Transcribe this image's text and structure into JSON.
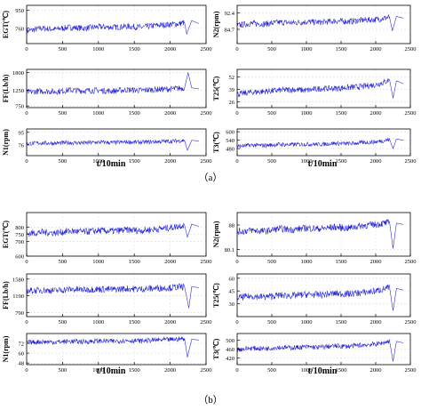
{
  "figure": {
    "xlabel": "t/10min",
    "captions": [
      "（a）",
      "（b）"
    ],
    "line_color": "#1f1fd6"
  },
  "chart_data": [
    {
      "type": "line",
      "group": "a",
      "ylabel": "EGT(℃)",
      "xlim": [
        0,
        2500
      ],
      "ylim": [
        600,
        1000
      ],
      "yticks": [
        760,
        950
      ],
      "xticks": [
        0,
        500,
        1000,
        1500,
        2000,
        2500
      ],
      "grid": true,
      "series": [
        {
          "x": [
            0,
            200,
            400,
            600,
            800,
            1000,
            1200,
            1400,
            1600,
            1800,
            2000,
            2100,
            2200,
            2230,
            2300,
            2400
          ],
          "y": [
            730,
            760,
            750,
            770,
            760,
            775,
            770,
            780,
            770,
            790,
            800,
            805,
            820,
            700,
            840,
            810
          ]
        }
      ]
    },
    {
      "type": "line",
      "group": "a",
      "ylabel": "N2(rpm)",
      "xlim": [
        0,
        2500
      ],
      "ylim": [
        78,
        96
      ],
      "yticks": [
        84.7,
        92.4
      ],
      "xticks": [
        0,
        500,
        1000,
        1500,
        2000,
        2500
      ],
      "grid": true,
      "series": [
        {
          "x": [
            0,
            200,
            400,
            600,
            800,
            1000,
            1200,
            1400,
            1600,
            1800,
            2000,
            2100,
            2200,
            2240,
            2300,
            2400
          ],
          "y": [
            86.5,
            87.5,
            87.2,
            88,
            87.8,
            88.2,
            88,
            88.6,
            88.4,
            89,
            89.3,
            89.8,
            90.5,
            84,
            90.8,
            90
          ]
        }
      ]
    },
    {
      "type": "line",
      "group": "a",
      "ylabel": "FF(Lb/h)",
      "xlim": [
        0,
        2500
      ],
      "ylim": [
        700,
        1900
      ],
      "yticks": [
        750,
        1250,
        1800
      ],
      "xticks": [
        0,
        500,
        1000,
        1500,
        2000,
        2500
      ],
      "grid": true,
      "series": [
        {
          "x": [
            0,
            200,
            400,
            600,
            800,
            1000,
            1200,
            1400,
            1600,
            1800,
            2000,
            2100,
            2200,
            2250,
            2300,
            2400
          ],
          "y": [
            1180,
            1220,
            1200,
            1250,
            1230,
            1240,
            1220,
            1260,
            1240,
            1270,
            1280,
            1300,
            1320,
            1800,
            1320,
            1290
          ]
        }
      ]
    },
    {
      "type": "line",
      "group": "a",
      "ylabel": "T25(℃)",
      "xlim": [
        0,
        2500
      ],
      "ylim": [
        20,
        60
      ],
      "yticks": [
        26,
        39,
        52
      ],
      "xticks": [
        0,
        500,
        1000,
        1500,
        2000,
        2500
      ],
      "grid": true,
      "series": [
        {
          "x": [
            0,
            200,
            400,
            600,
            800,
            1000,
            1200,
            1400,
            1600,
            1800,
            2000,
            2100,
            2200,
            2250,
            2300,
            2400
          ],
          "y": [
            34,
            36,
            37,
            38,
            39,
            38,
            40,
            40,
            41,
            42,
            44,
            46,
            49,
            30,
            48,
            45
          ]
        }
      ]
    },
    {
      "type": "line",
      "group": "a",
      "ylabel": "N1(rpm)",
      "xlim": [
        0,
        2500
      ],
      "ylim": [
        60,
        100
      ],
      "yticks": [
        76,
        95
      ],
      "xticks": [
        0,
        500,
        1000,
        1500,
        2000,
        2500
      ],
      "grid": true,
      "series": [
        {
          "x": [
            0,
            200,
            400,
            600,
            800,
            1000,
            1200,
            1400,
            1600,
            1800,
            2000,
            2100,
            2200,
            2240,
            2300,
            2400
          ],
          "y": [
            78,
            79,
            78.5,
            79.5,
            79,
            80,
            79.5,
            80.5,
            80,
            81,
            81.5,
            82,
            83,
            68,
            83,
            82
          ]
        }
      ]
    },
    {
      "type": "line",
      "group": "a",
      "ylabel": "T3(℃)",
      "xlim": [
        0,
        2500
      ],
      "ylim": [
        430,
        620
      ],
      "yticks": [
        480,
        540,
        600
      ],
      "xticks": [
        0,
        500,
        1000,
        1500,
        2000,
        2500
      ],
      "grid": true,
      "series": [
        {
          "x": [
            0,
            200,
            400,
            600,
            800,
            1000,
            1200,
            1400,
            1600,
            1800,
            2000,
            2100,
            2200,
            2250,
            2300,
            2400
          ],
          "y": [
            495,
            505,
            502,
            510,
            508,
            512,
            510,
            518,
            515,
            522,
            528,
            535,
            545,
            480,
            548,
            540
          ]
        }
      ]
    },
    {
      "type": "line",
      "group": "b",
      "ylabel": "EGT(℃)",
      "xlim": [
        0,
        2500
      ],
      "ylim": [
        600,
        900
      ],
      "yticks": [
        600,
        700,
        750,
        800
      ],
      "xticks": [
        0,
        500,
        1000,
        1500,
        2000,
        2500
      ],
      "grid": true,
      "series": [
        {
          "x": [
            0,
            200,
            400,
            600,
            800,
            1000,
            1200,
            1400,
            1600,
            1800,
            2000,
            2100,
            2200,
            2240,
            2300,
            2400
          ],
          "y": [
            755,
            765,
            760,
            772,
            768,
            775,
            772,
            780,
            776,
            786,
            795,
            805,
            815,
            730,
            820,
            805
          ]
        }
      ]
    },
    {
      "type": "line",
      "group": "b",
      "ylabel": "N2(rpm)",
      "xlim": [
        0,
        2500
      ],
      "ylim": [
        78,
        92
      ],
      "yticks": [
        80.1,
        88.0
      ],
      "xticks": [
        0,
        500,
        1000,
        1500,
        2000,
        2500
      ],
      "grid": true,
      "series": [
        {
          "x": [
            0,
            200,
            400,
            600,
            800,
            1000,
            1200,
            1400,
            1600,
            1800,
            2000,
            2100,
            2200,
            2250,
            2300,
            2400
          ],
          "y": [
            85.8,
            86.3,
            86,
            86.8,
            86.5,
            87,
            86.8,
            87.3,
            87,
            87.8,
            88.2,
            88.5,
            88.8,
            80.5,
            88.6,
            88.2
          ]
        }
      ]
    },
    {
      "type": "line",
      "group": "b",
      "ylabel": "FF(Lb/h)",
      "xlim": [
        0,
        2500
      ],
      "ylim": [
        700,
        1700
      ],
      "yticks": [
        790,
        1190,
        1580
      ],
      "xticks": [
        0,
        500,
        1000,
        1500,
        2000,
        2500
      ],
      "grid": true,
      "series": [
        {
          "x": [
            0,
            200,
            400,
            600,
            800,
            1000,
            1200,
            1400,
            1600,
            1800,
            2000,
            2100,
            2200,
            2260,
            2300,
            2400
          ],
          "y": [
            1300,
            1320,
            1310,
            1340,
            1330,
            1345,
            1335,
            1355,
            1345,
            1365,
            1375,
            1390,
            1400,
            900,
            1400,
            1380
          ]
        }
      ]
    },
    {
      "type": "line",
      "group": "b",
      "ylabel": "T25(℃)",
      "xlim": [
        0,
        2500
      ],
      "ylim": [
        15,
        65
      ],
      "yticks": [
        30,
        45,
        60
      ],
      "xticks": [
        0,
        500,
        1000,
        1500,
        2000,
        2500
      ],
      "grid": true,
      "series": [
        {
          "x": [
            0,
            200,
            400,
            600,
            800,
            1000,
            1200,
            1400,
            1600,
            1800,
            2000,
            2100,
            2200,
            2250,
            2300,
            2400
          ],
          "y": [
            37,
            39,
            38,
            40,
            39.5,
            41,
            40.5,
            42,
            41.5,
            43,
            45,
            47,
            49,
            22,
            48,
            46
          ]
        }
      ]
    },
    {
      "type": "line",
      "group": "b",
      "ylabel": "N1(rpm)",
      "xlim": [
        0,
        2500
      ],
      "ylim": [
        46,
        84
      ],
      "yticks": [
        48,
        60,
        72
      ],
      "xticks": [
        0,
        500,
        1000,
        1500,
        2000,
        2500
      ],
      "grid": true,
      "series": [
        {
          "x": [
            0,
            200,
            400,
            600,
            800,
            1000,
            1200,
            1400,
            1600,
            1800,
            2000,
            2100,
            2200,
            2240,
            2300,
            2400
          ],
          "y": [
            73,
            74,
            73.5,
            74.5,
            74,
            75,
            74.5,
            75.5,
            75,
            76,
            76.5,
            77,
            78,
            55,
            77,
            76
          ]
        }
      ]
    },
    {
      "type": "line",
      "group": "b",
      "ylabel": "T3(℃)",
      "xlim": [
        0,
        2500
      ],
      "ylim": [
        390,
        530
      ],
      "yticks": [
        420,
        460,
        500
      ],
      "xticks": [
        0,
        500,
        1000,
        1500,
        2000,
        2500
      ],
      "grid": true,
      "series": [
        {
          "x": [
            0,
            200,
            400,
            600,
            800,
            1000,
            1200,
            1400,
            1600,
            1800,
            2000,
            2100,
            2200,
            2250,
            2300,
            2400
          ],
          "y": [
            458,
            464,
            462,
            468,
            466,
            470,
            468,
            474,
            472,
            478,
            482,
            488,
            496,
            405,
            495,
            488
          ]
        }
      ]
    }
  ]
}
